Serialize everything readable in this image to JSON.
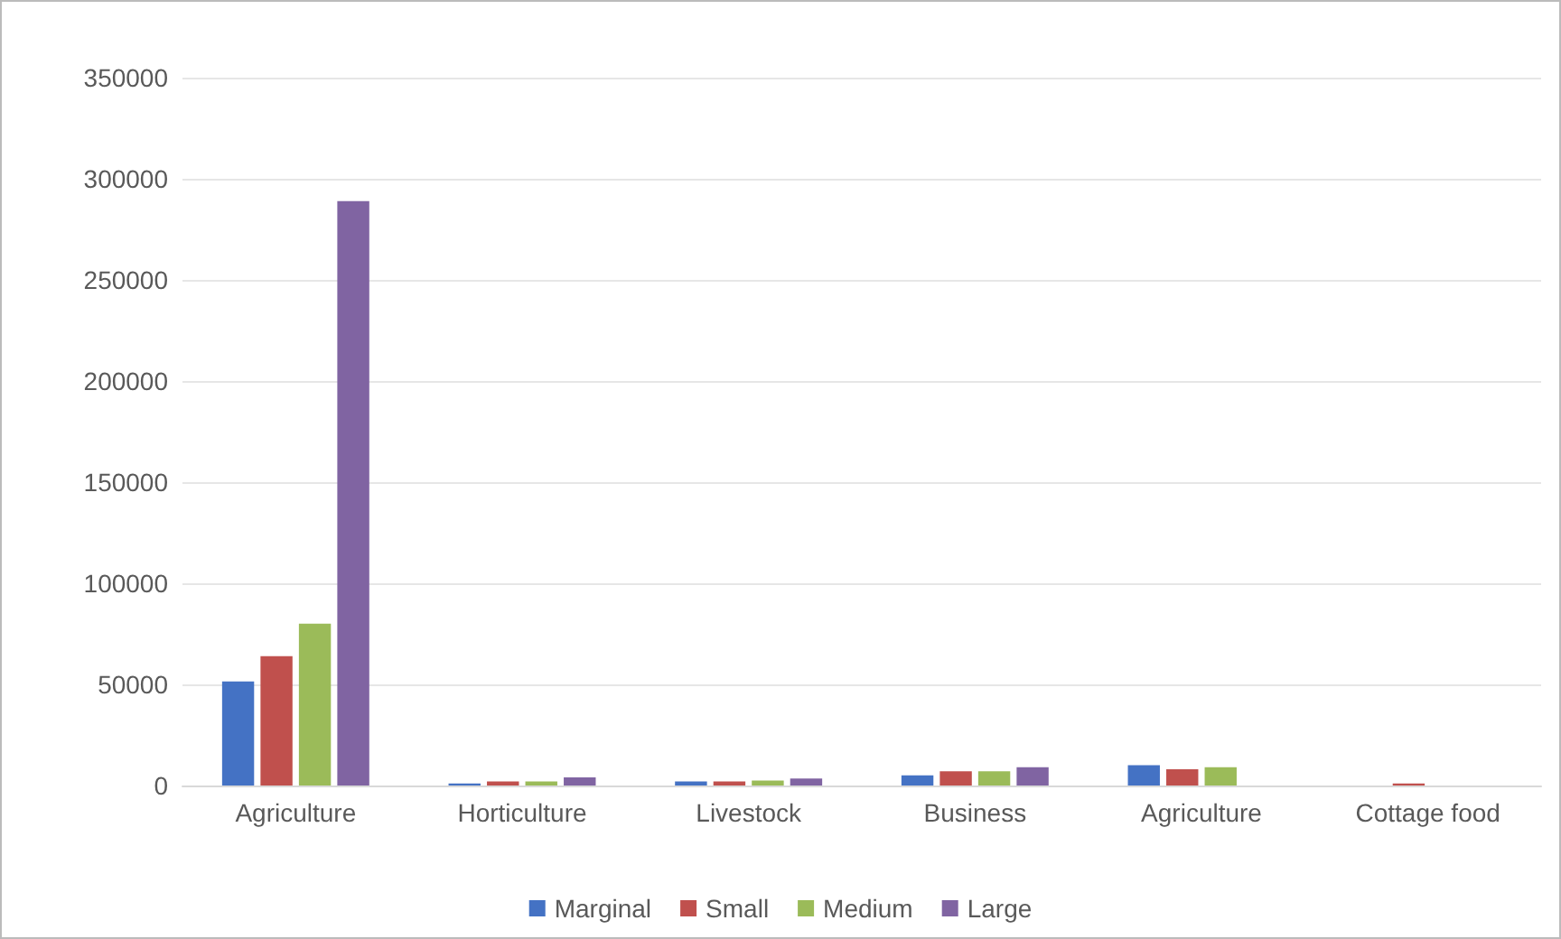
{
  "chart_data": {
    "type": "bar",
    "categories": [
      "Agriculture",
      "Horticulture",
      "Livestock",
      "Business",
      "Agriculture",
      "Cottage food"
    ],
    "series": [
      {
        "name": "Marginal",
        "color": "#4472c4",
        "values": [
          51500,
          1000,
          2000,
          5000,
          10000,
          null
        ]
      },
      {
        "name": "Small",
        "color": "#c0504d",
        "values": [
          64000,
          2000,
          2000,
          7000,
          8000,
          1000
        ]
      },
      {
        "name": "Medium",
        "color": "#9bbb59",
        "values": [
          80000,
          2000,
          2500,
          7000,
          9000,
          null
        ]
      },
      {
        "name": "Large",
        "color": "#8064a2",
        "values": [
          289000,
          4000,
          3500,
          9000,
          null,
          null
        ]
      }
    ],
    "ylim": [
      0,
      350000
    ],
    "yticks": [
      0,
      50000,
      100000,
      150000,
      200000,
      250000,
      300000,
      350000
    ],
    "grid": "y",
    "legend": "bottom"
  }
}
